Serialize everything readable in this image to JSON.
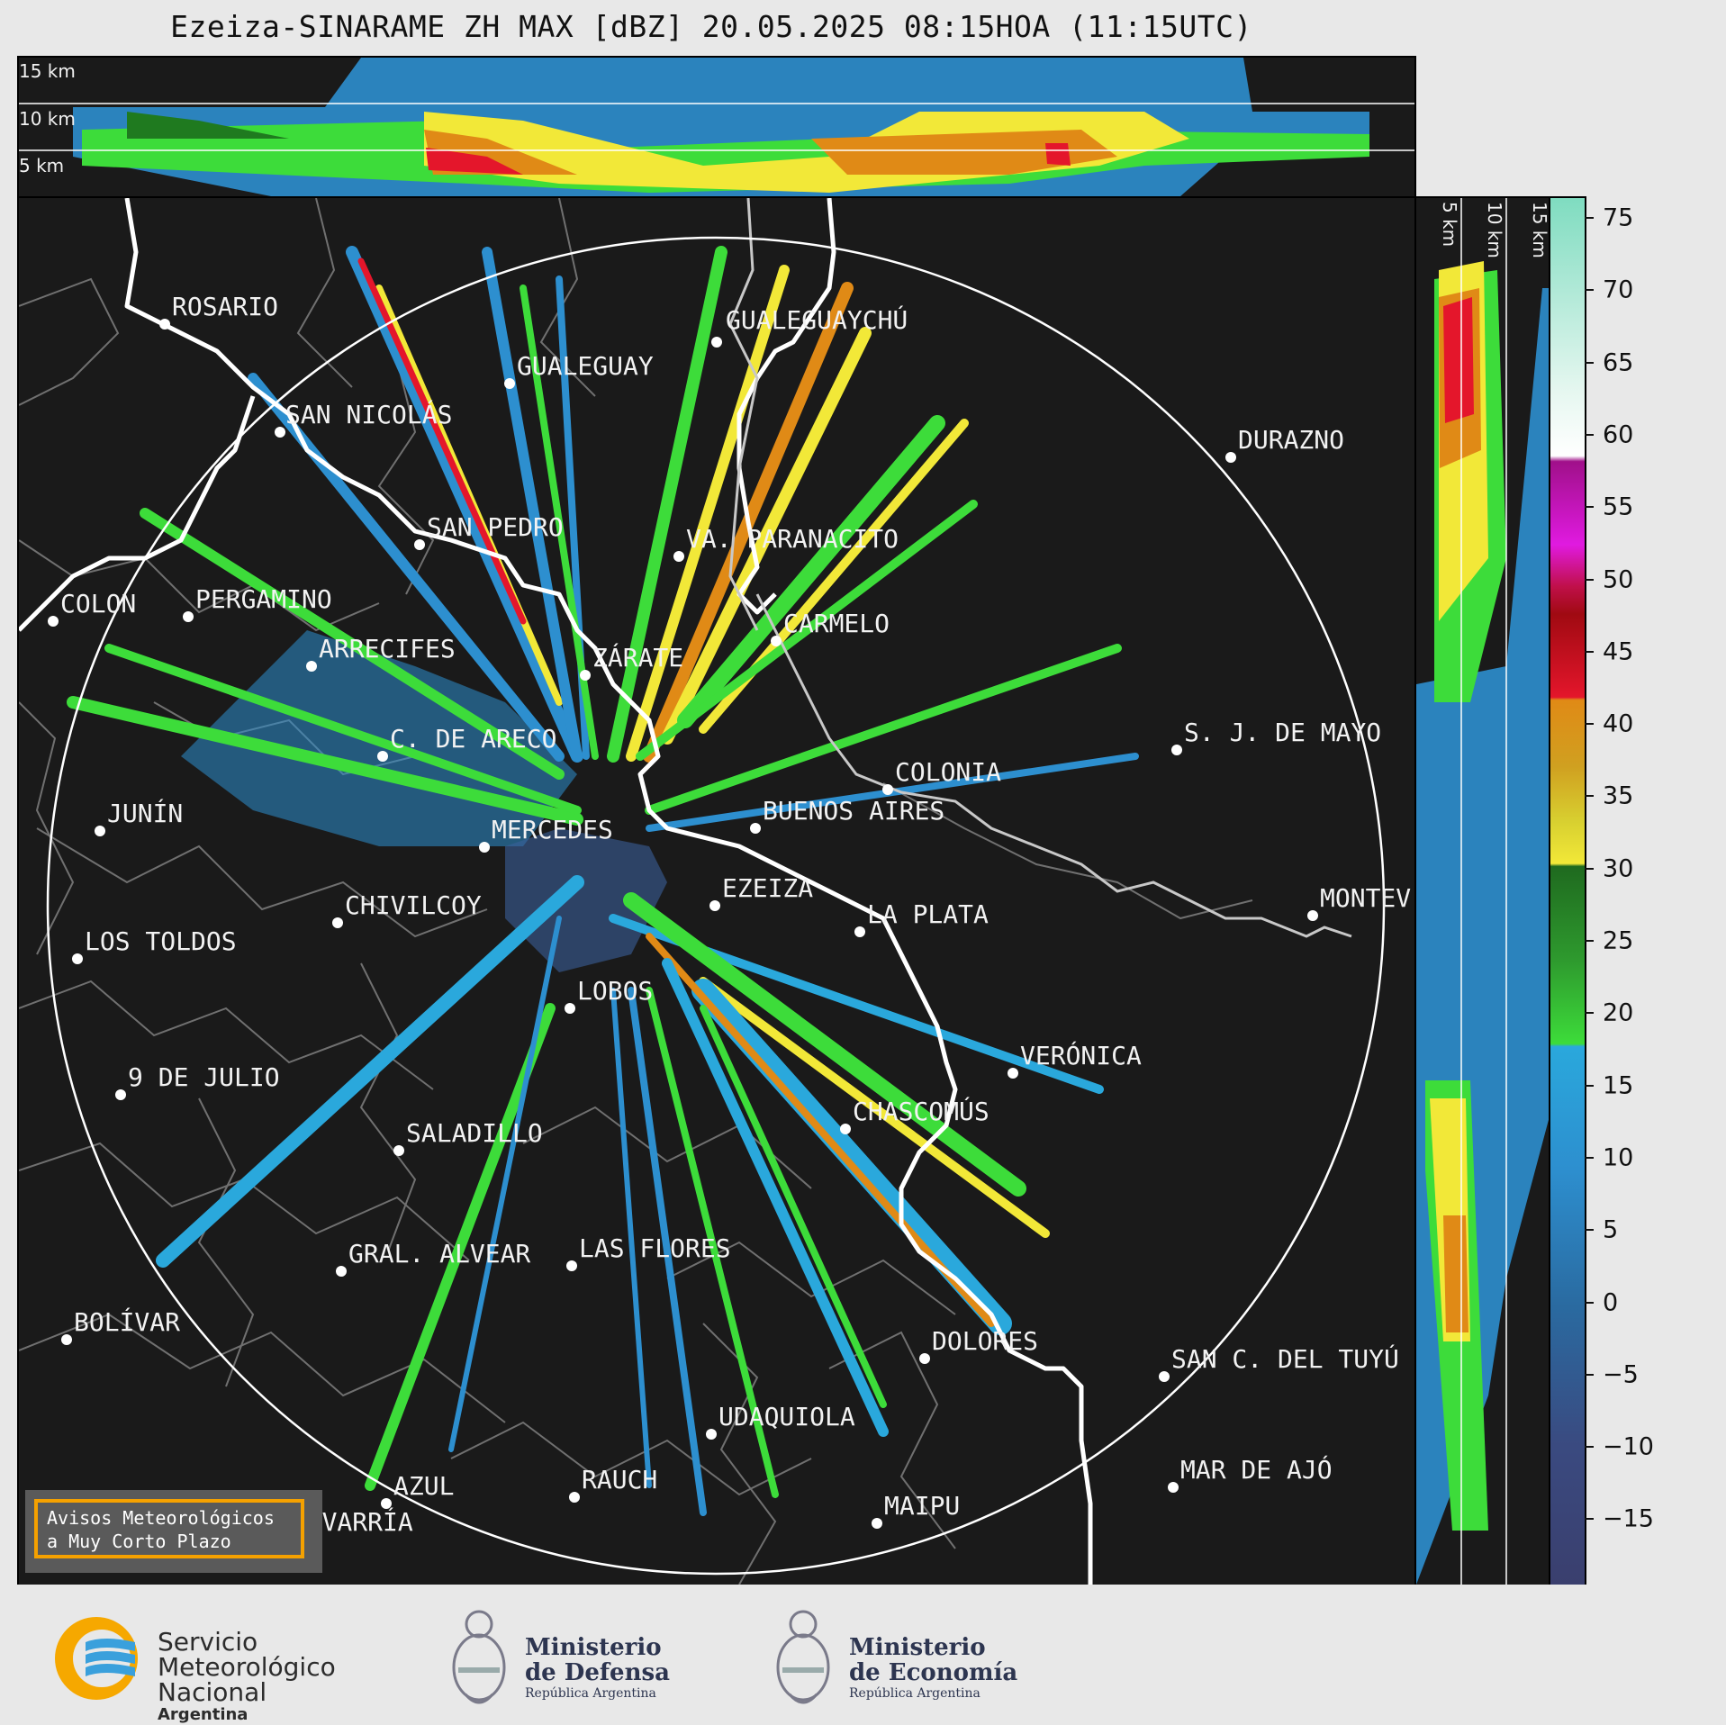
{
  "title": "Ezeiza-SINARAME ZH MAX [dBZ] 20.05.2025 08:15HOA (11:15UTC)",
  "top_xsec": {
    "km_labels": [
      "15 km",
      "10 km",
      "5 km"
    ]
  },
  "right_xsec": {
    "km_labels": [
      "5 km",
      "10 km",
      "15 km"
    ]
  },
  "colorbar": {
    "unit": "dBZ",
    "ticks": [
      "75",
      "70",
      "65",
      "60",
      "55",
      "50",
      "45",
      "40",
      "35",
      "30",
      "25",
      "20",
      "15",
      "10",
      "5",
      "0",
      "−5",
      "−10",
      "−15"
    ],
    "colors": {
      "low": "#3a3f6e",
      "blue": "#2d8fcf",
      "cyan": "#2aa8dc",
      "green": "#3ddc3a",
      "darkgreen": "#1f7a1f",
      "yellow": "#f2e838",
      "orange": "#e08a16",
      "red": "#e4162b",
      "magenta": "#e01ae0",
      "white": "#ffffff",
      "mint": "#88dcc0"
    }
  },
  "map": {
    "cities": [
      {
        "name": "ROSARIO"
      },
      {
        "name": "GUALEGUAYCHÚ"
      },
      {
        "name": "GUALEGUAY"
      },
      {
        "name": "SAN NICOLÁS"
      },
      {
        "name": "DURAZNO"
      },
      {
        "name": "SAN PEDRO"
      },
      {
        "name": "VA. PARANACITO"
      },
      {
        "name": "COLON"
      },
      {
        "name": "PERGAMINO"
      },
      {
        "name": "CARMELO"
      },
      {
        "name": "ARRECIFES"
      },
      {
        "name": "ZÁRATE"
      },
      {
        "name": "S. J. DE MAYO"
      },
      {
        "name": "C. DE ARECO"
      },
      {
        "name": "COLONIA"
      },
      {
        "name": "JUNÍN"
      },
      {
        "name": "BUENOS AIRES"
      },
      {
        "name": "MERCEDES"
      },
      {
        "name": "MONTEV"
      },
      {
        "name": "EZEIZA"
      },
      {
        "name": "CHIVILCOY"
      },
      {
        "name": "LA PLATA"
      },
      {
        "name": "LOS TOLDOS"
      },
      {
        "name": "LOBOS"
      },
      {
        "name": "VERÓNICA"
      },
      {
        "name": "9 DE JULIO"
      },
      {
        "name": "CHASCOMÚS"
      },
      {
        "name": "SALADILLO"
      },
      {
        "name": "GRAL. ALVEAR"
      },
      {
        "name": "LAS FLORES"
      },
      {
        "name": "BOLÍVAR"
      },
      {
        "name": "DOLORES"
      },
      {
        "name": "SAN C. DEL TUYÚ"
      },
      {
        "name": "UDAQUIOLA"
      },
      {
        "name": "MAR DE AJÓ"
      },
      {
        "name": "AZUL"
      },
      {
        "name": "RAUCH"
      },
      {
        "name": "MAIPU"
      },
      {
        "name": "OLAVARRÍA"
      }
    ],
    "warning_box": {
      "line1": "Avisos Meteorológicos",
      "line2": "a Muy Corto Plazo"
    }
  },
  "footer": {
    "smn": {
      "line1": "Servicio",
      "line2": "Meteorológico",
      "line3": "Nacional",
      "country": "Argentina"
    },
    "defensa": {
      "line1": "Ministerio",
      "line2": "de Defensa",
      "line3": "República Argentina"
    },
    "economia": {
      "line1": "Ministerio",
      "line2": "de Economía",
      "line3": "República Argentina"
    }
  }
}
